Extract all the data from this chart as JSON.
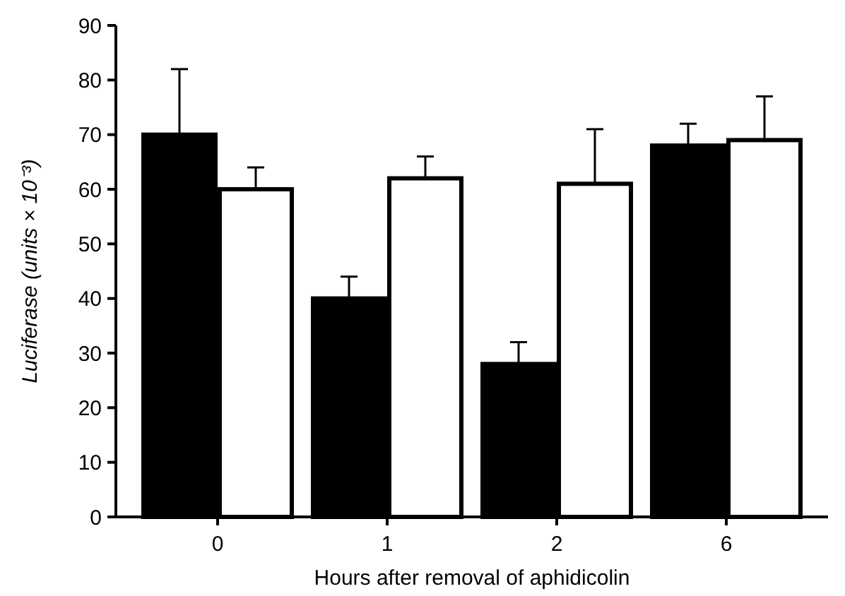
{
  "chart_data": {
    "type": "bar",
    "xlabel": "Hours after removal of aphidicolin",
    "ylabel": "Luciferase (units × 10⁻³)",
    "categories": [
      "0",
      "1",
      "2",
      "6"
    ],
    "series": [
      {
        "color": "#000000",
        "values": [
          70,
          40,
          28,
          68
        ],
        "errors": [
          [
            70,
            82
          ],
          [
            40,
            44
          ],
          [
            28,
            32
          ],
          [
            68,
            72
          ]
        ]
      },
      {
        "color": "#ffffff",
        "values": [
          60,
          62,
          61,
          69
        ],
        "errors": [
          [
            60,
            64
          ],
          [
            62,
            66
          ],
          [
            61,
            71
          ],
          [
            69,
            77
          ]
        ]
      }
    ],
    "ylim": [
      0,
      90
    ],
    "yticks": [
      0,
      10,
      20,
      30,
      40,
      50,
      60,
      70,
      80,
      90
    ],
    "grid": false
  }
}
